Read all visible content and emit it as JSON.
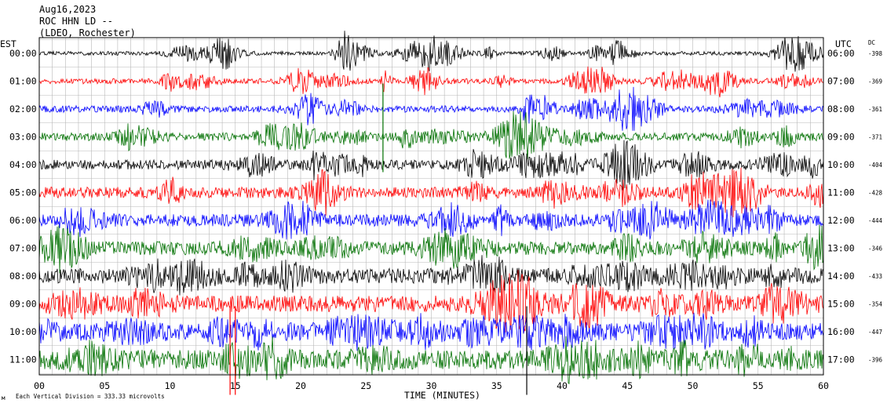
{
  "header": {
    "date": "Aug16,2023",
    "station": "ROC HHN LD --",
    "network": "(LDEO, Rochester)"
  },
  "left_axis_title": "EST",
  "right_axis_title": "UTC",
  "dc_title": "DC",
  "footer": {
    "scale_note": "Each Vertical Division =  333.33 microvolts",
    "corner_mark": "м"
  },
  "chart_data": {
    "type": "line",
    "title": "",
    "xlabel": "TIME (MINUTES)",
    "ylabel": "",
    "xlim": [
      0,
      60
    ],
    "x_ticks": [
      "00",
      "05",
      "10",
      "15",
      "20",
      "25",
      "30",
      "35",
      "40",
      "45",
      "50",
      "55",
      "60"
    ],
    "x_tick_values": [
      0,
      5,
      10,
      15,
      20,
      25,
      30,
      35,
      40,
      45,
      50,
      55,
      60
    ],
    "grid": true,
    "vertical_division_microvolts": 333.33,
    "trace_colors": [
      "#000000",
      "#ff0000",
      "#0000ff",
      "#007000"
    ],
    "rows": [
      {
        "est": "00:00",
        "utc": "06:00",
        "dc": "-398",
        "color": "#000000"
      },
      {
        "est": "01:00",
        "utc": "07:00",
        "dc": "-369",
        "color": "#ff0000"
      },
      {
        "est": "02:00",
        "utc": "08:00",
        "dc": "-361",
        "color": "#0000ff"
      },
      {
        "est": "03:00",
        "utc": "09:00",
        "dc": "-371",
        "color": "#007000"
      },
      {
        "est": "04:00",
        "utc": "10:00",
        "dc": "-404",
        "color": "#000000"
      },
      {
        "est": "05:00",
        "utc": "11:00",
        "dc": "-428",
        "color": "#ff0000"
      },
      {
        "est": "06:00",
        "utc": "12:00",
        "dc": "-444",
        "color": "#0000ff"
      },
      {
        "est": "07:00",
        "utc": "13:00",
        "dc": "-346",
        "color": "#007000"
      },
      {
        "est": "08:00",
        "utc": "14:00",
        "dc": "-433",
        "color": "#000000"
      },
      {
        "est": "09:00",
        "utc": "15:00",
        "dc": "-354",
        "color": "#ff0000"
      },
      {
        "est": "10:00",
        "utc": "16:00",
        "dc": "-447",
        "color": "#0000ff"
      },
      {
        "est": "11:00",
        "utc": "17:00",
        "dc": "-396",
        "color": "#007000"
      }
    ],
    "notable_spikes": [
      {
        "row": "03:00",
        "minute": 26.3,
        "color": "#007000"
      },
      {
        "row": "11:00",
        "minute": 14.6,
        "color": "#ff0000"
      },
      {
        "row": "11:00",
        "minute": 15.0,
        "color": "#ff0000"
      },
      {
        "row": "11:00",
        "minute": 37.3,
        "color": "#000000"
      }
    ]
  }
}
